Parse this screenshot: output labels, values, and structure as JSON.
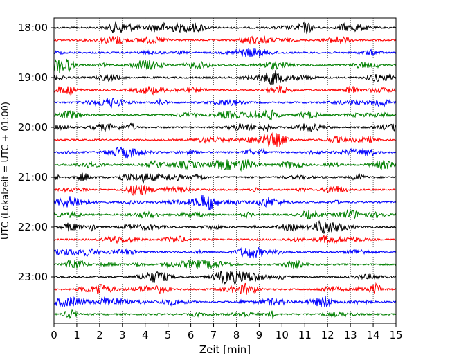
{
  "chart_data": {
    "type": "line",
    "title": "",
    "xlabel": "Zeit  [min]",
    "ylabel": "UTC (Lokalzeit = UTC + 01:00)",
    "xlim": [
      0,
      15
    ],
    "x_ticks": [
      "0",
      "1",
      "2",
      "3",
      "4",
      "5",
      "6",
      "7",
      "8",
      "9",
      "10",
      "11",
      "12",
      "13",
      "14",
      "15"
    ],
    "y_tick_labels": [
      "18:00",
      "19:00",
      "20:00",
      "21:00",
      "22:00",
      "23:00"
    ],
    "trace_interval_minutes": 15,
    "grid": "vertical dotted",
    "colors": [
      "#000000",
      "#ff0000",
      "#0000ff",
      "#008000"
    ],
    "traces": [
      {
        "start": "18:00",
        "color": "#000000"
      },
      {
        "start": "18:15",
        "color": "#ff0000"
      },
      {
        "start": "18:30",
        "color": "#0000ff"
      },
      {
        "start": "18:45",
        "color": "#008000"
      },
      {
        "start": "19:00",
        "color": "#000000"
      },
      {
        "start": "19:15",
        "color": "#ff0000"
      },
      {
        "start": "19:30",
        "color": "#0000ff"
      },
      {
        "start": "19:45",
        "color": "#008000"
      },
      {
        "start": "20:00",
        "color": "#000000"
      },
      {
        "start": "20:15",
        "color": "#ff0000"
      },
      {
        "start": "20:30",
        "color": "#0000ff"
      },
      {
        "start": "20:45",
        "color": "#008000"
      },
      {
        "start": "21:00",
        "color": "#000000"
      },
      {
        "start": "21:15",
        "color": "#ff0000"
      },
      {
        "start": "21:30",
        "color": "#0000ff"
      },
      {
        "start": "21:45",
        "color": "#008000"
      },
      {
        "start": "22:00",
        "color": "#000000"
      },
      {
        "start": "22:15",
        "color": "#ff0000"
      },
      {
        "start": "22:30",
        "color": "#0000ff"
      },
      {
        "start": "22:45",
        "color": "#008000"
      },
      {
        "start": "23:00",
        "color": "#000000"
      },
      {
        "start": "23:15",
        "color": "#ff0000"
      },
      {
        "start": "23:30",
        "color": "#0000ff"
      },
      {
        "start": "23:45",
        "color": "#008000"
      }
    ]
  }
}
